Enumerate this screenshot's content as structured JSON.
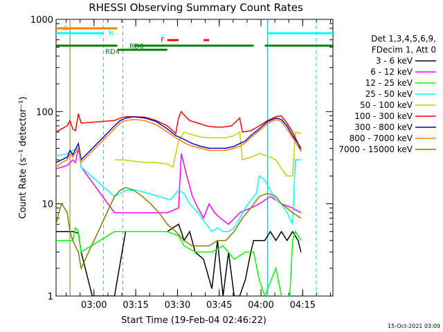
{
  "chart_data": {
    "type": "line",
    "title": "RHESSI Observing Summary Count Rates",
    "xlabel": "Start Time (19-Feb-04 02:46:22)",
    "ylabel": "Count Rate (s⁻¹ detector⁻¹)",
    "yscale": "log",
    "ylim": [
      1,
      1000
    ],
    "xlim_minutes": [
      0,
      99.5
    ],
    "x_ticks": [
      {
        "label": "03:00",
        "minute": 13.63
      },
      {
        "label": "03:15",
        "minute": 28.63
      },
      {
        "label": "03:30",
        "minute": 43.63
      },
      {
        "label": "03:45",
        "minute": 58.63
      },
      {
        "label": "04:00",
        "minute": 73.63
      },
      {
        "label": "04:15",
        "minute": 88.63
      }
    ],
    "y_ticks": [
      {
        "label": "1",
        "value": 1
      },
      {
        "label": "10",
        "value": 10
      },
      {
        "label": "100",
        "value": 100
      },
      {
        "label": "1000",
        "value": 1000
      }
    ],
    "legend_header": [
      "Det 1,3,4,5,6,9,",
      "FDecim 1, Att 0"
    ],
    "legend_position": "right",
    "timestamp": "15-Oct-2021 03:09",
    "series": [
      {
        "name": "3 - 6 keV",
        "color": "#000000",
        "points": [
          [
            0,
            5
          ],
          [
            6,
            5
          ],
          [
            8,
            4.8
          ],
          [
            9,
            3
          ],
          [
            13,
            1
          ],
          [
            21,
            1
          ],
          [
            25,
            5
          ],
          [
            40,
            5
          ],
          [
            44,
            6
          ],
          [
            45,
            5
          ],
          [
            46,
            4
          ],
          [
            48,
            5
          ],
          [
            50,
            3
          ],
          [
            53,
            2.5
          ],
          [
            56,
            1.2
          ],
          [
            58,
            4
          ],
          [
            60,
            1
          ],
          [
            62,
            3
          ],
          [
            64,
            1
          ],
          [
            66,
            1
          ],
          [
            68,
            1.5
          ],
          [
            70,
            3
          ],
          [
            71,
            4
          ],
          [
            75,
            4
          ],
          [
            77,
            5
          ],
          [
            79,
            4
          ],
          [
            81,
            5
          ],
          [
            83,
            4
          ],
          [
            85,
            5
          ],
          [
            87,
            4
          ],
          [
            88,
            3
          ]
        ]
      },
      {
        "name": "6 - 12 keV",
        "color": "#ff00ff",
        "points": [
          [
            0,
            24
          ],
          [
            2,
            25
          ],
          [
            4,
            26
          ],
          [
            6,
            30
          ],
          [
            7,
            28
          ],
          [
            8,
            40
          ],
          [
            9,
            25
          ],
          [
            21,
            8
          ],
          [
            25,
            8
          ],
          [
            40,
            8
          ],
          [
            44,
            9
          ],
          [
            45,
            35
          ],
          [
            47,
            20
          ],
          [
            49,
            12
          ],
          [
            51,
            9
          ],
          [
            53,
            7
          ],
          [
            55,
            10
          ],
          [
            57,
            8
          ],
          [
            59,
            7
          ],
          [
            62,
            6
          ],
          [
            66,
            8
          ],
          [
            70,
            9
          ],
          [
            73,
            10
          ],
          [
            77,
            12
          ],
          [
            81,
            10
          ],
          [
            85,
            9
          ],
          [
            88,
            8
          ]
        ]
      },
      {
        "name": "12 - 25 keV",
        "color": "#00ff00",
        "points": [
          [
            0,
            4
          ],
          [
            6,
            4
          ],
          [
            7,
            5.5
          ],
          [
            8,
            5
          ],
          [
            9,
            3
          ],
          [
            21,
            5
          ],
          [
            25,
            5
          ],
          [
            40,
            5
          ],
          [
            44,
            4.5
          ],
          [
            46,
            3.5
          ],
          [
            50,
            3
          ],
          [
            56,
            3
          ],
          [
            60,
            3.5
          ],
          [
            64,
            2.5
          ],
          [
            68,
            3
          ],
          [
            71,
            3
          ],
          [
            73,
            1.5
          ],
          [
            75,
            1
          ],
          [
            79,
            2
          ],
          [
            81,
            1
          ],
          [
            84,
            1
          ],
          [
            85,
            4
          ],
          [
            86,
            5
          ],
          [
            88,
            4
          ]
        ]
      },
      {
        "name": "25 - 50 keV",
        "color": "#00ffff",
        "points": [
          [
            0,
            33
          ],
          [
            2,
            34
          ],
          [
            4,
            35
          ],
          [
            6,
            38
          ],
          [
            8,
            40
          ],
          [
            9,
            25
          ],
          [
            21,
            12
          ],
          [
            25,
            14
          ],
          [
            29,
            14
          ],
          [
            33,
            13
          ],
          [
            37,
            12
          ],
          [
            41,
            11
          ],
          [
            44,
            14
          ],
          [
            46,
            13
          ],
          [
            48,
            10
          ],
          [
            51,
            8
          ],
          [
            54,
            6
          ],
          [
            56,
            5
          ],
          [
            58,
            5.5
          ],
          [
            60,
            5
          ],
          [
            62,
            5
          ],
          [
            64,
            5.5
          ],
          [
            66,
            7
          ],
          [
            68,
            9
          ],
          [
            70,
            11
          ],
          [
            72,
            13
          ],
          [
            73,
            20
          ],
          [
            75,
            18
          ],
          [
            77,
            14
          ],
          [
            79,
            11
          ],
          [
            81,
            10
          ],
          [
            83,
            8
          ],
          [
            85,
            6
          ],
          [
            86,
            30
          ],
          [
            88,
            30
          ]
        ]
      },
      {
        "name": "50 - 100 keV",
        "color": "#cccc00",
        "points": [
          [
            21,
            30
          ],
          [
            24,
            30
          ],
          [
            28,
            29
          ],
          [
            32,
            28
          ],
          [
            36,
            28
          ],
          [
            40,
            27
          ],
          [
            42,
            25
          ],
          [
            44,
            48
          ],
          [
            46,
            60
          ],
          [
            49,
            56
          ],
          [
            52,
            53
          ],
          [
            55,
            52
          ],
          [
            58,
            52
          ],
          [
            61,
            52
          ],
          [
            64,
            55
          ],
          [
            66,
            60
          ],
          [
            67,
            30
          ],
          [
            70,
            32
          ],
          [
            73,
            35
          ],
          [
            76,
            33
          ],
          [
            79,
            30
          ],
          [
            81,
            24
          ],
          [
            83,
            20
          ],
          [
            85,
            20
          ],
          [
            86,
            60
          ],
          [
            88,
            58
          ]
        ]
      },
      {
        "name": "100 - 300 keV",
        "color": "#ff0000",
        "points": [
          [
            0,
            60
          ],
          [
            2,
            65
          ],
          [
            4,
            70
          ],
          [
            5,
            80
          ],
          [
            6,
            65
          ],
          [
            7,
            62
          ],
          [
            8,
            95
          ],
          [
            9,
            75
          ],
          [
            21,
            80
          ],
          [
            23,
            85
          ],
          [
            25,
            88
          ],
          [
            28,
            88
          ],
          [
            32,
            87
          ],
          [
            36,
            80
          ],
          [
            40,
            70
          ],
          [
            43,
            58
          ],
          [
            44,
            85
          ],
          [
            45,
            100
          ],
          [
            46,
            92
          ],
          [
            48,
            80
          ],
          [
            51,
            75
          ],
          [
            54,
            70
          ],
          [
            57,
            68
          ],
          [
            60,
            68
          ],
          [
            63,
            70
          ],
          [
            66,
            85
          ],
          [
            67,
            60
          ],
          [
            70,
            62
          ],
          [
            73,
            70
          ],
          [
            76,
            80
          ],
          [
            79,
            88
          ],
          [
            81,
            90
          ],
          [
            83,
            75
          ],
          [
            85,
            60
          ],
          [
            87,
            45
          ],
          [
            88,
            38
          ]
        ]
      },
      {
        "name": "300 - 800 keV",
        "color": "#0000cc",
        "points": [
          [
            0,
            28
          ],
          [
            2,
            30
          ],
          [
            4,
            32
          ],
          [
            5,
            38
          ],
          [
            6,
            34
          ],
          [
            8,
            45
          ],
          [
            9,
            30
          ],
          [
            21,
            70
          ],
          [
            23,
            80
          ],
          [
            25,
            85
          ],
          [
            28,
            88
          ],
          [
            32,
            85
          ],
          [
            36,
            78
          ],
          [
            40,
            65
          ],
          [
            43,
            55
          ],
          [
            46,
            50
          ],
          [
            49,
            45
          ],
          [
            52,
            42
          ],
          [
            55,
            40
          ],
          [
            58,
            40
          ],
          [
            61,
            40
          ],
          [
            64,
            42
          ],
          [
            66,
            45
          ],
          [
            68,
            48
          ],
          [
            70,
            55
          ],
          [
            73,
            65
          ],
          [
            76,
            78
          ],
          [
            79,
            85
          ],
          [
            81,
            82
          ],
          [
            83,
            70
          ],
          [
            85,
            55
          ],
          [
            87,
            45
          ],
          [
            88,
            40
          ]
        ]
      },
      {
        "name": "800 - 7000 keV",
        "color": "#ff8000",
        "points": [
          [
            0,
            25
          ],
          [
            2,
            28
          ],
          [
            4,
            30
          ],
          [
            5,
            35
          ],
          [
            6,
            32
          ],
          [
            8,
            40
          ],
          [
            9,
            28
          ],
          [
            21,
            65
          ],
          [
            23,
            75
          ],
          [
            25,
            80
          ],
          [
            28,
            82
          ],
          [
            32,
            80
          ],
          [
            36,
            72
          ],
          [
            40,
            60
          ],
          [
            43,
            52
          ],
          [
            46,
            46
          ],
          [
            49,
            42
          ],
          [
            52,
            40
          ],
          [
            55,
            38
          ],
          [
            58,
            38
          ],
          [
            61,
            38
          ],
          [
            64,
            40
          ],
          [
            66,
            42
          ],
          [
            68,
            46
          ],
          [
            70,
            52
          ],
          [
            73,
            62
          ],
          [
            76,
            74
          ],
          [
            79,
            82
          ],
          [
            81,
            78
          ],
          [
            83,
            65
          ],
          [
            85,
            52
          ],
          [
            87,
            42
          ],
          [
            88,
            37
          ]
        ]
      },
      {
        "name": "7000 - 15000 keV",
        "color": "#808000",
        "points": [
          [
            0,
            6
          ],
          [
            1,
            8
          ],
          [
            2,
            10
          ],
          [
            3,
            9
          ],
          [
            4,
            8
          ],
          [
            5,
            5
          ],
          [
            6,
            4
          ],
          [
            8,
            3
          ],
          [
            9,
            2
          ],
          [
            21,
            12
          ],
          [
            23,
            14
          ],
          [
            25,
            15
          ],
          [
            28,
            14
          ],
          [
            31,
            12
          ],
          [
            34,
            10
          ],
          [
            37,
            8
          ],
          [
            40,
            6
          ],
          [
            43,
            5
          ],
          [
            46,
            4
          ],
          [
            49,
            3.5
          ],
          [
            52,
            3.5
          ],
          [
            55,
            3.5
          ],
          [
            58,
            4
          ],
          [
            61,
            4
          ],
          [
            64,
            5
          ],
          [
            67,
            7
          ],
          [
            70,
            9
          ],
          [
            73,
            12
          ],
          [
            76,
            13
          ],
          [
            79,
            12
          ],
          [
            81,
            10
          ],
          [
            83,
            9
          ],
          [
            85,
            8
          ],
          [
            88,
            7
          ]
        ]
      }
    ],
    "flags": [
      {
        "label": "S",
        "color": "#ff8000",
        "start": 0,
        "end": 22
      },
      {
        "label": "N",
        "color": "#00ffff",
        "segments": [
          [
            0,
            17
          ],
          [
            76,
            99.5
          ]
        ]
      },
      {
        "label": "F",
        "color": "#ff0000",
        "segments": [
          [
            40,
            44
          ],
          [
            53,
            55
          ]
        ]
      },
      {
        "label": "RD0",
        "color": "#008000",
        "segments": [
          [
            0,
            22
          ],
          [
            28,
            71
          ],
          [
            75,
            99.5
          ]
        ]
      },
      {
        "label": "RD4",
        "color": "#008000",
        "segments": [
          [
            22,
            40
          ]
        ]
      }
    ],
    "vertical_markers": [
      {
        "minute": 5,
        "color": "#808000",
        "style": "solid"
      },
      {
        "minute": 17,
        "color": "#00cccc",
        "style": "dashed"
      },
      {
        "minute": 24,
        "color": "#ff8000",
        "style": "dashed"
      },
      {
        "minute": 76,
        "color": "#00cccc",
        "style": "solid"
      },
      {
        "minute": 93.5,
        "color": "#00cccc",
        "style": "dashed"
      }
    ]
  }
}
